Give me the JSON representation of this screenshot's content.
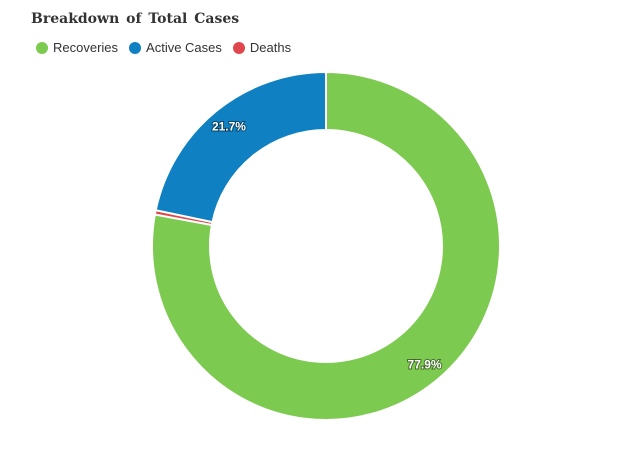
{
  "chart_data": {
    "type": "pie",
    "variant": "donut",
    "title": "Breakdown of Total Cases",
    "legend_position": "top-left",
    "slices": [
      {
        "name": "Recoveries",
        "value": 77.9,
        "color": "#7cca4f",
        "label": "77.9%"
      },
      {
        "name": "Deaths",
        "value": 0.4,
        "color": "#e0474c",
        "label": ""
      },
      {
        "name": "Active Cases",
        "value": 21.7,
        "color": "#0f80c1",
        "label": "21.7%"
      }
    ]
  },
  "legend": {
    "items": [
      {
        "label": "Recoveries",
        "color": "#7cca4f"
      },
      {
        "label": "Active Cases",
        "color": "#0f80c1"
      },
      {
        "label": "Deaths",
        "color": "#e0474c"
      }
    ]
  }
}
